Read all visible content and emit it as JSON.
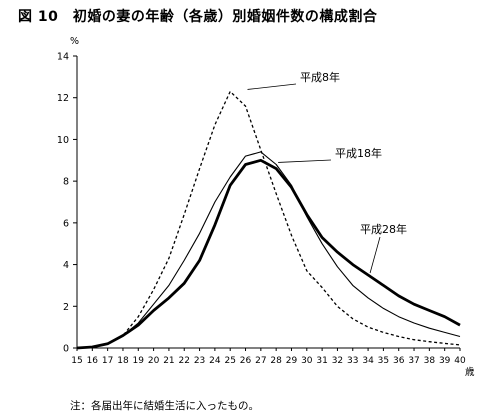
{
  "header": {
    "title": "図 10　初婚の妻の年齢（各歳）別婚姻件数の構成割合"
  },
  "footer": {
    "note": "注：各届出年に結婚生活に入ったもの。"
  },
  "chart_data": {
    "type": "line",
    "title": "図 10　初婚の妻の年齢（各歳）別婚姻件数の構成割合",
    "xlabel": "歳",
    "ylabel": "%",
    "x": [
      15,
      16,
      17,
      18,
      19,
      20,
      21,
      22,
      23,
      24,
      25,
      26,
      27,
      28,
      29,
      30,
      31,
      32,
      33,
      34,
      35,
      36,
      37,
      38,
      39,
      40
    ],
    "xlim": [
      15,
      40
    ],
    "ylim": [
      0,
      14
    ],
    "yticks": [
      0,
      2,
      4,
      6,
      8,
      10,
      12,
      14
    ],
    "grid": false,
    "legend": "inline labels",
    "series": [
      {
        "name": "平成8年",
        "style": "dashed",
        "values": [
          0.0,
          0.05,
          0.2,
          0.6,
          1.5,
          2.8,
          4.3,
          6.4,
          8.6,
          10.7,
          12.3,
          11.6,
          9.5,
          7.4,
          5.4,
          3.7,
          2.9,
          2.0,
          1.4,
          1.0,
          0.75,
          0.55,
          0.4,
          0.3,
          0.22,
          0.15
        ]
      },
      {
        "name": "平成18年",
        "style": "thin",
        "values": [
          0.0,
          0.05,
          0.2,
          0.6,
          1.2,
          2.1,
          3.0,
          4.2,
          5.5,
          7.0,
          8.2,
          9.2,
          9.4,
          8.8,
          7.8,
          6.3,
          5.0,
          3.9,
          3.0,
          2.4,
          1.9,
          1.5,
          1.2,
          0.95,
          0.75,
          0.55
        ]
      },
      {
        "name": "平成28年",
        "style": "thick",
        "values": [
          0.0,
          0.05,
          0.2,
          0.6,
          1.1,
          1.8,
          2.4,
          3.1,
          4.2,
          5.9,
          7.8,
          8.8,
          9.0,
          8.6,
          7.7,
          6.4,
          5.3,
          4.6,
          4.0,
          3.5,
          3.0,
          2.5,
          2.1,
          1.8,
          1.5,
          1.1
        ]
      }
    ],
    "colors": {
      "line": "#000000"
    }
  }
}
